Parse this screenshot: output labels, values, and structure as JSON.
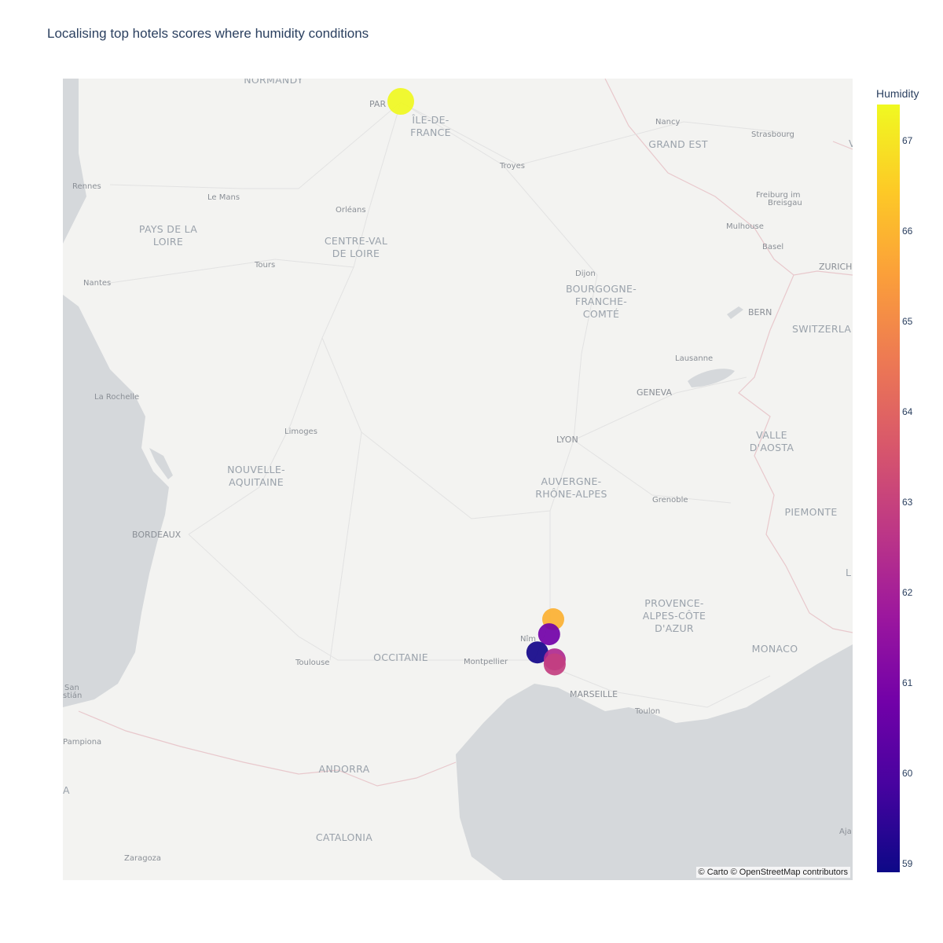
{
  "title": "Localising top hotels scores where humidity conditions",
  "attribution": "© Carto © OpenStreetMap contributors",
  "colorbar": {
    "title": "Humidity",
    "min": 58.9,
    "max": 67.4,
    "ticks": [
      "59",
      "60",
      "61",
      "62",
      "63",
      "64",
      "65",
      "66",
      "67"
    ],
    "colorscale": [
      "#0d0887",
      "#46039f",
      "#7201a8",
      "#9c179e",
      "#bd3786",
      "#d8576b",
      "#ed7953",
      "#fb9f3a",
      "#fdca26",
      "#f0f921"
    ]
  },
  "map": {
    "labels": {
      "normandy": "NORMANDY",
      "paris": "PAR",
      "ile_de_france_1": "ÎLE-DE-",
      "ile_de_france_2": "FRANCE",
      "nancy": "Nancy",
      "strasbourg": "Strasbourg",
      "grand_est": "GRAND EST",
      "troyes": "Troyes",
      "rennes": "Rennes",
      "le_mans": "Le Mans",
      "orleans": "Orléans",
      "freiburg_1": "Freiburg im",
      "freiburg_2": "Breisgau",
      "pays_de_la_loire_1": "PAYS DE LA",
      "pays_de_la_loire_2": "LOIRE",
      "centre_val_de_loire_1": "CENTRE-VAL",
      "centre_val_de_loire_2": "DE LOIRE",
      "mulhouse": "Mulhouse",
      "basel": "Basel",
      "zurich": "ZURICH",
      "tours": "Tours",
      "nantes": "Nantes",
      "dijon": "Dijon",
      "bourgogne_1": "BOURGOGNE-",
      "bourgogne_2": "FRANCHE-",
      "bourgogne_3": "COMTÉ",
      "bern": "BERN",
      "switzerland": "SWITZERLA",
      "lausanne": "Lausanne",
      "la_rochelle": "La Rochelle",
      "geneva": "GENEVA",
      "limoges": "Limoges",
      "lyon": "LYON",
      "valle_1": "VALLE",
      "valle_2": "D'AOSTA",
      "nouvelle_aquitaine_1": "NOUVELLE-",
      "nouvelle_aquitaine_2": "AQUITAINE",
      "auvergne_1": "AUVERGNE-",
      "auvergne_2": "RHÔNE-ALPES",
      "grenoble": "Grenoble",
      "piemonte": "PIEMONTE",
      "bordeaux": "BORDEAUX",
      "provence_1": "PROVENCE-",
      "provence_2": "ALPES-CÔTE",
      "provence_3": "D'AZUR",
      "nimes": "Nîm",
      "toulouse": "Toulouse",
      "occitanie": "OCCITANIE",
      "montpellier": "Montpellier",
      "monaco": "MONACO",
      "marseille": "MARSEILLE",
      "san_1": "San",
      "san_2": "stián",
      "toulon": "Toulon",
      "pampiona": "Pampiona",
      "andorra": "ANDORRA",
      "a_edge": "A",
      "catalonia": "CATALONIA",
      "zaragoza": "Zaragoza",
      "aja": "Aja",
      "l_edge": "L",
      "v_edge": "V"
    }
  },
  "points": [
    {
      "name": "paris-point",
      "lat": 48.857,
      "lon": 2.35,
      "humidity": 67.4
    },
    {
      "name": "avignon-point",
      "lat": 43.949,
      "lon": 4.806,
      "humidity": 65.9
    },
    {
      "name": "nimes-point",
      "lat": 43.8,
      "lon": 4.74,
      "humidity": 60.8
    },
    {
      "name": "lunel-point",
      "lat": 43.62,
      "lon": 4.55,
      "humidity": 59.0
    },
    {
      "name": "arles-point-1",
      "lat": 43.55,
      "lon": 4.83,
      "humidity": 62.3
    },
    {
      "name": "arles-point-2",
      "lat": 43.5,
      "lon": 4.83,
      "humidity": 62.9
    }
  ]
}
